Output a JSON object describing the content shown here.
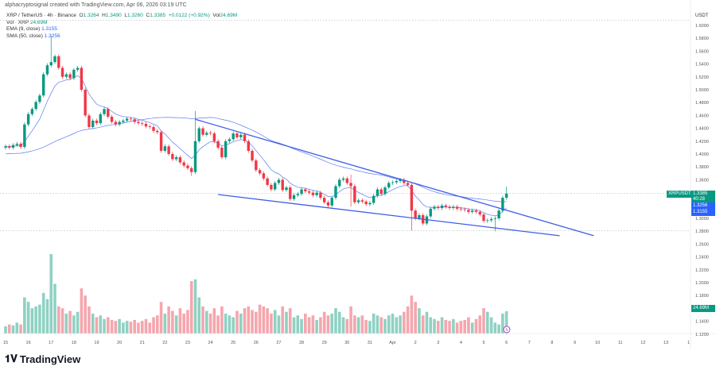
{
  "header": "alphacryptosignal created with TradingView.com, Apr 06, 2026 03:19 UTC",
  "legend": {
    "symbol": "XRP / TetherUS · 4h · Binance",
    "o_label": "O",
    "o": "1.3264",
    "h_label": "H",
    "h": "1.3490",
    "l_label": "L",
    "l": "1.3260",
    "c_label": "C",
    "c": "1.3385",
    "change": "+0.0122 (+0.92%)",
    "vol_label": "Vol",
    "vol": "24.69M",
    "vol_line": "Vol · XRP",
    "vol_value": "24.69M",
    "ema_label": "EMA (9, close)",
    "ema_value": "1.3155",
    "sma_label": "SMA (50, close)",
    "sma_value": "1.3256"
  },
  "axis": {
    "currency": "USDT",
    "price_ticks": [
      "1.6000",
      "1.5800",
      "1.5600",
      "1.5400",
      "1.5200",
      "1.5000",
      "1.4800",
      "1.4600",
      "1.4400",
      "1.4200",
      "1.4000",
      "1.3800",
      "1.3600",
      "1.3000",
      "1.2800",
      "1.2600",
      "1.2400",
      "1.2200",
      "1.2000",
      "1.1800",
      "1.1400",
      "1.1200"
    ],
    "date_ticks": [
      "15",
      "16",
      "17",
      "18",
      "19",
      "20",
      "21",
      "22",
      "23",
      "24",
      "25",
      "26",
      "27",
      "28",
      "29",
      "30",
      "31",
      "Apr",
      "2",
      "3",
      "4",
      "5",
      "6",
      "7",
      "8",
      "9",
      "10",
      "11",
      "12",
      "13",
      "1"
    ]
  },
  "tags": {
    "symbol": "XRPUSDT",
    "price": "1.3385",
    "countdown": "40:28",
    "sma": "1.3256",
    "ema": "1.3155",
    "volume": "24.69M"
  },
  "logo": "TradingView",
  "colors": {
    "up": "#089981",
    "down": "#f23645",
    "up_vol": "#8fd1c3",
    "down_vol": "#f5a6ad",
    "ma": "#5b7bf0",
    "trend": "#3d5ee6"
  },
  "chart_data": {
    "type": "candlestick",
    "interval": "4h",
    "ylim": [
      1.11,
      1.6077
    ],
    "close": [
      1.412,
      1.41,
      1.414,
      1.416,
      1.411,
      1.446,
      1.462,
      1.47,
      1.481,
      1.491,
      1.524,
      1.538,
      1.543,
      1.552,
      1.534,
      1.52,
      1.524,
      1.518,
      1.531,
      1.534,
      1.5,
      1.46,
      1.442,
      1.452,
      1.448,
      1.462,
      1.47,
      1.458,
      1.45,
      1.446,
      1.45,
      1.452,
      1.455,
      1.454,
      1.45,
      1.448,
      1.447,
      1.443,
      1.442,
      1.436,
      1.434,
      1.405,
      1.412,
      1.4,
      1.392,
      1.395,
      1.387,
      1.382,
      1.378,
      1.372,
      1.42,
      1.44,
      1.43,
      1.433,
      1.432,
      1.42,
      1.41,
      1.395,
      1.42,
      1.423,
      1.432,
      1.426,
      1.43,
      1.42,
      1.405,
      1.39,
      1.375,
      1.37,
      1.362,
      1.352,
      1.345,
      1.355,
      1.36,
      1.344,
      1.348,
      1.33,
      1.336,
      1.338,
      1.345,
      1.342,
      1.34,
      1.336,
      1.34,
      1.332,
      1.325,
      1.32,
      1.332,
      1.35,
      1.36,
      1.362,
      1.355,
      1.35,
      1.325,
      1.328,
      1.326,
      1.322,
      1.324,
      1.335,
      1.345,
      1.338,
      1.348,
      1.355,
      1.356,
      1.358,
      1.36,
      1.355,
      1.352,
      1.312,
      1.3,
      1.305,
      1.292,
      1.303,
      1.315,
      1.318,
      1.316,
      1.32,
      1.318,
      1.316,
      1.318,
      1.315,
      1.314,
      1.313,
      1.31,
      1.312,
      1.31,
      1.306,
      1.296,
      1.297,
      1.299,
      1.3,
      1.312,
      1.332,
      1.3385
    ],
    "notable_highs": {
      "12": 1.584,
      "50": 1.467,
      "91": 1.368,
      "132": 1.349
    },
    "notable_lows": {
      "49": 1.366,
      "91": 1.318,
      "107": 1.281,
      "129": 1.28
    },
    "volume_millions": [
      8,
      10,
      9,
      12,
      10,
      40,
      35,
      28,
      30,
      32,
      45,
      38,
      88,
      55,
      30,
      28,
      22,
      25,
      20,
      24,
      50,
      42,
      30,
      22,
      18,
      20,
      16,
      18,
      15,
      14,
      16,
      12,
      14,
      13,
      15,
      12,
      14,
      16,
      12,
      18,
      20,
      35,
      22,
      30,
      25,
      20,
      28,
      22,
      26,
      58,
      60,
      40,
      30,
      25,
      22,
      28,
      20,
      30,
      22,
      20,
      18,
      25,
      22,
      28,
      30,
      26,
      24,
      32,
      30,
      28,
      22,
      26,
      20,
      30,
      24,
      28,
      18,
      20,
      16,
      22,
      18,
      20,
      15,
      18,
      24,
      20,
      22,
      28,
      24,
      18,
      16,
      30,
      20,
      18,
      20,
      15,
      14,
      22,
      20,
      18,
      16,
      20,
      22,
      18,
      20,
      24,
      30,
      42,
      35,
      28,
      20,
      24,
      18,
      16,
      14,
      18,
      15,
      14,
      16,
      12,
      14,
      15,
      18,
      12,
      16,
      20,
      28,
      24,
      18,
      12,
      10,
      22,
      24.69
    ],
    "ema_period": 9,
    "sma_period": 50,
    "trendlines": [
      {
        "name": "upper",
        "from": {
          "candle": 50,
          "price": 1.454
        },
        "to": {
          "candle": 155,
          "price": 1.273
        }
      },
      {
        "name": "lower",
        "from": {
          "candle": 56,
          "price": 1.337
        },
        "to": {
          "candle": 146,
          "price": 1.273
        }
      }
    ],
    "grid": false
  }
}
